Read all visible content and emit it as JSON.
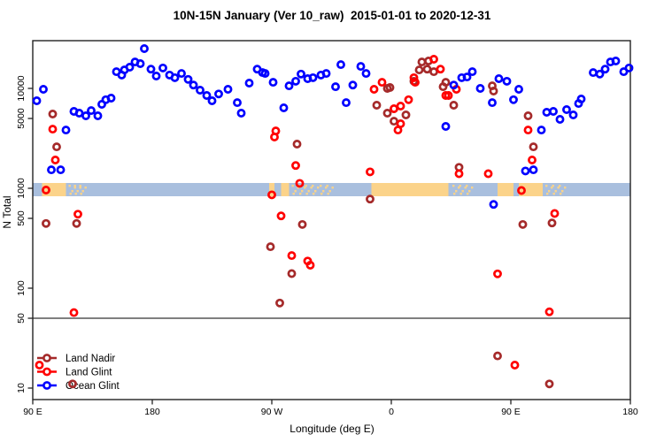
{
  "title": "10N-15N January (Ver 10_raw)  2015-01-01 to 2020-12-31",
  "chart_data": {
    "type": "scatter",
    "title": "10N-15N January (Ver 10_raw)  2015-01-01 to 2020-12-31",
    "xlabel": "Longitude (deg E)",
    "ylabel": "N Total",
    "x_axis": {
      "range_deg_e": [
        90,
        540
      ],
      "ticks": [
        90,
        180,
        270,
        360,
        450,
        540
      ],
      "tick_labels": [
        "90 E",
        "180",
        "90 W",
        "0",
        "90 E",
        "180"
      ]
    },
    "y_axis": {
      "scale": "log",
      "range": [
        7.5,
        30000
      ],
      "ticks": [
        10,
        50,
        100,
        500,
        1000,
        5000,
        10000
      ],
      "tick_labels": [
        "10",
        "50",
        "100",
        "500",
        "1000",
        "5000",
        "10000"
      ]
    },
    "reference_line_y": 50,
    "grid": false,
    "legend": {
      "position": "bottom-left"
    },
    "map_strip": {
      "center_value": 1000,
      "ocean_color": "#A9BFDE",
      "land_color": "#FBD38A",
      "land_patches_deg_e": [
        [
          97,
          115
        ],
        [
          268,
          272
        ],
        [
          277,
          283
        ],
        [
          345,
          403
        ],
        [
          440,
          452
        ],
        [
          456,
          474
        ]
      ],
      "speckle_patches_deg_e": [
        [
          117,
          119
        ],
        [
          121,
          123
        ],
        [
          125,
          127
        ],
        [
          285,
          287
        ],
        [
          290,
          292
        ],
        [
          295,
          297
        ],
        [
          300,
          302
        ],
        [
          306,
          308
        ],
        [
          311,
          313
        ],
        [
          406,
          408
        ],
        [
          411,
          413
        ],
        [
          416,
          418
        ],
        [
          476,
          478
        ],
        [
          481,
          483
        ],
        [
          486,
          488
        ]
      ]
    },
    "series": [
      {
        "name": "Land Nadir",
        "color": "#A52A2A",
        "points": [
          [
            105,
            5540
          ],
          [
            108,
            2600
          ],
          [
            100,
            444
          ],
          [
            123,
            444
          ],
          [
            120,
            11
          ],
          [
            289,
            2770
          ],
          [
            293,
            435
          ],
          [
            269,
            260
          ],
          [
            285,
            140
          ],
          [
            276,
            71
          ],
          [
            344,
            780
          ],
          [
            349,
            6790
          ],
          [
            357,
            10000
          ],
          [
            359,
            10200
          ],
          [
            357,
            5650
          ],
          [
            362,
            4700
          ],
          [
            371,
            5430
          ],
          [
            377,
            11800
          ],
          [
            381,
            15300
          ],
          [
            383,
            18400
          ],
          [
            387,
            15600
          ],
          [
            388,
            18800
          ],
          [
            392,
            14700
          ],
          [
            399,
            10400
          ],
          [
            401,
            11500
          ],
          [
            407,
            6790
          ],
          [
            411,
            1620
          ],
          [
            436,
            10600
          ],
          [
            437,
            9400
          ],
          [
            463,
            5320
          ],
          [
            467,
            2600
          ],
          [
            459,
            435
          ],
          [
            481,
            450
          ],
          [
            440,
            21
          ],
          [
            479,
            11
          ]
        ]
      },
      {
        "name": "Land Glint",
        "color": "#FF0000",
        "points": [
          [
            105,
            3910
          ],
          [
            107,
            1920
          ],
          [
            100,
            960
          ],
          [
            124,
            550
          ],
          [
            121,
            57
          ],
          [
            95,
            17
          ],
          [
            272,
            3260
          ],
          [
            273,
            3750
          ],
          [
            288,
            1690
          ],
          [
            291,
            1120
          ],
          [
            270,
            860
          ],
          [
            277,
            530
          ],
          [
            285,
            212
          ],
          [
            297,
            187
          ],
          [
            299,
            170
          ],
          [
            344,
            1460
          ],
          [
            347,
            9800
          ],
          [
            353,
            11500
          ],
          [
            362,
            6260
          ],
          [
            367,
            6650
          ],
          [
            365,
            3830
          ],
          [
            367,
            4430
          ],
          [
            373,
            7700
          ],
          [
            377,
            12800
          ],
          [
            378,
            11500
          ],
          [
            392,
            19600
          ],
          [
            397,
            15600
          ],
          [
            401,
            8500
          ],
          [
            403,
            8500
          ],
          [
            409,
            9800
          ],
          [
            411,
            1400
          ],
          [
            433,
            1400
          ],
          [
            458,
            950
          ],
          [
            463,
            3830
          ],
          [
            466,
            1920
          ],
          [
            483,
            560
          ],
          [
            440,
            139
          ],
          [
            479,
            58
          ],
          [
            453,
            17
          ]
        ]
      },
      {
        "name": "Ocean Glint",
        "color": "#0000FF",
        "points": [
          [
            98,
            9800
          ],
          [
            93,
            7520
          ],
          [
            104,
            1530
          ],
          [
            111,
            1530
          ],
          [
            115,
            3830
          ],
          [
            121,
            5890
          ],
          [
            125,
            5650
          ],
          [
            130,
            5320
          ],
          [
            134,
            6000
          ],
          [
            139,
            5320
          ],
          [
            142,
            6930
          ],
          [
            145,
            7700
          ],
          [
            149,
            8000
          ],
          [
            153,
            14700
          ],
          [
            157,
            13600
          ],
          [
            159,
            15300
          ],
          [
            163,
            16300
          ],
          [
            167,
            18400
          ],
          [
            171,
            17700
          ],
          [
            174,
            25000
          ],
          [
            179,
            15600
          ],
          [
            183,
            13300
          ],
          [
            188,
            16000
          ],
          [
            193,
            13600
          ],
          [
            197,
            12800
          ],
          [
            202,
            14100
          ],
          [
            207,
            12300
          ],
          [
            211,
            10800
          ],
          [
            216,
            9600
          ],
          [
            221,
            8500
          ],
          [
            225,
            7520
          ],
          [
            230,
            8800
          ],
          [
            237,
            9800
          ],
          [
            244,
            7200
          ],
          [
            247,
            5650
          ],
          [
            253,
            11300
          ],
          [
            259,
            15600
          ],
          [
            263,
            14400
          ],
          [
            265,
            14100
          ],
          [
            271,
            11500
          ],
          [
            279,
            6390
          ],
          [
            283,
            10600
          ],
          [
            288,
            11800
          ],
          [
            292,
            13900
          ],
          [
            297,
            12500
          ],
          [
            301,
            12800
          ],
          [
            307,
            13600
          ],
          [
            311,
            14100
          ],
          [
            318,
            10400
          ],
          [
            322,
            17300
          ],
          [
            326,
            7200
          ],
          [
            331,
            10800
          ],
          [
            337,
            16600
          ],
          [
            341,
            14100
          ],
          [
            401,
            4160
          ],
          [
            407,
            10800
          ],
          [
            413,
            12800
          ],
          [
            417,
            13000
          ],
          [
            421,
            14700
          ],
          [
            427,
            10000
          ],
          [
            436,
            7200
          ],
          [
            437,
            690
          ],
          [
            441,
            12500
          ],
          [
            447,
            11800
          ],
          [
            452,
            7700
          ],
          [
            456,
            9800
          ],
          [
            461,
            1490
          ],
          [
            467,
            1530
          ],
          [
            473,
            3830
          ],
          [
            477,
            5770
          ],
          [
            482,
            5890
          ],
          [
            487,
            4900
          ],
          [
            492,
            6130
          ],
          [
            497,
            5430
          ],
          [
            501,
            7060
          ],
          [
            503,
            7830
          ],
          [
            512,
            14400
          ],
          [
            517,
            13900
          ],
          [
            521,
            15600
          ],
          [
            525,
            18400
          ],
          [
            529,
            18800
          ],
          [
            535,
            14700
          ],
          [
            539,
            16000
          ]
        ]
      }
    ]
  }
}
